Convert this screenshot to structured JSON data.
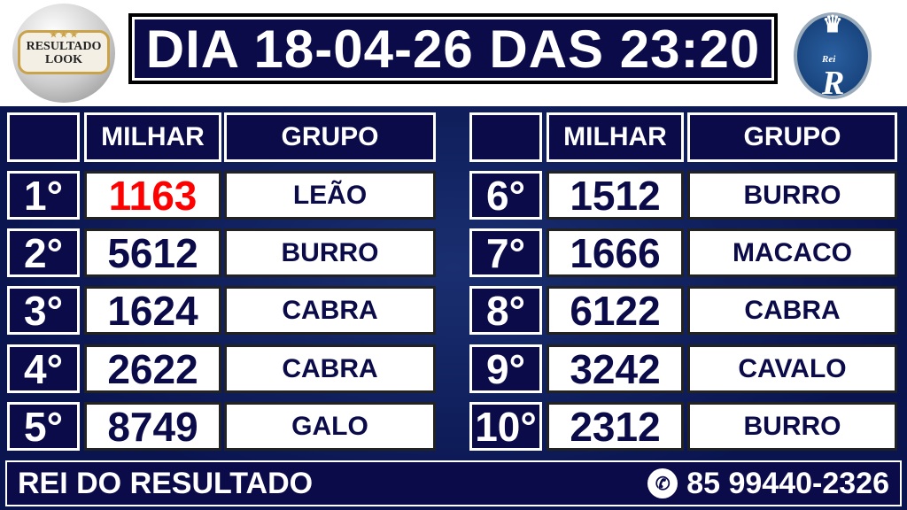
{
  "header": {
    "left_logo_text": "RESULTADO LOOK",
    "title": "DIA 18-04-26 DAS 23:20",
    "right_logo_text": "Rei R"
  },
  "columns": {
    "milhar": "MILHAR",
    "grupo": "GRUPO"
  },
  "accent_color": "#ff0000",
  "results": [
    {
      "pos": "1°",
      "milhar": "1163",
      "grupo": "LEÃO",
      "highlight": true
    },
    {
      "pos": "2°",
      "milhar": "5612",
      "grupo": "BURRO"
    },
    {
      "pos": "3°",
      "milhar": "1624",
      "grupo": "CABRA"
    },
    {
      "pos": "4°",
      "milhar": "2622",
      "grupo": "CABRA"
    },
    {
      "pos": "5°",
      "milhar": "8749",
      "grupo": "GALO"
    },
    {
      "pos": "6°",
      "milhar": "1512",
      "grupo": "BURRO"
    },
    {
      "pos": "7°",
      "milhar": "1666",
      "grupo": "MACACO"
    },
    {
      "pos": "8°",
      "milhar": "6122",
      "grupo": "CABRA"
    },
    {
      "pos": "9°",
      "milhar": "3242",
      "grupo": "CAVALO"
    },
    {
      "pos": "10°",
      "milhar": "2312",
      "grupo": "BURRO"
    }
  ],
  "footer": {
    "brand": "REI DO RESULTADO",
    "phone": "85 99440-2326",
    "phone_icon": "whatsapp-icon"
  }
}
